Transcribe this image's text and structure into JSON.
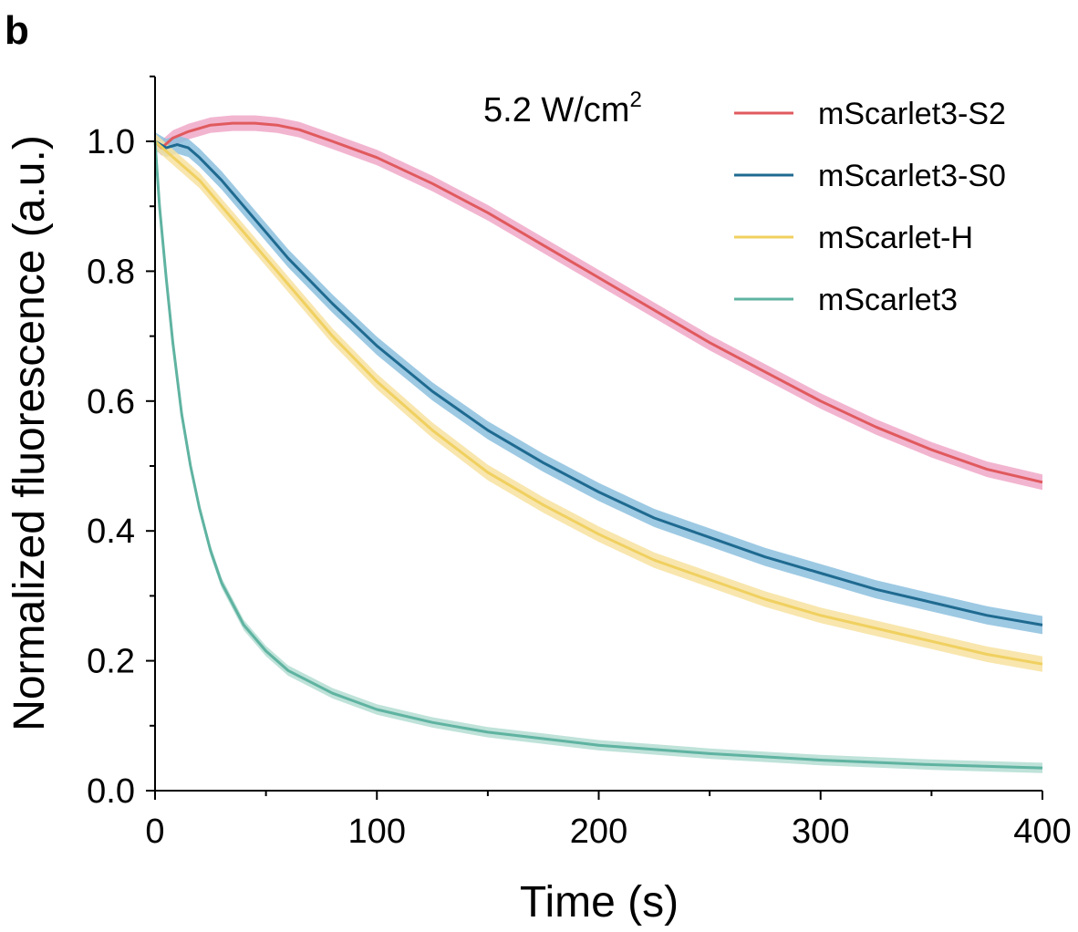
{
  "panel_label": "b",
  "chart_data": {
    "type": "line",
    "title": "",
    "annotation_main": "5.2 W/cm",
    "annotation_sup": "2",
    "xlabel": "Time (s)",
    "ylabel": "Normalized fluorescence (a.u.)",
    "xlim": [
      0,
      400
    ],
    "ylim": [
      0,
      1.1
    ],
    "xticks": [
      0,
      100,
      200,
      300,
      400
    ],
    "xtick_labels": [
      "0",
      "100",
      "200",
      "300",
      "400"
    ],
    "yticks": [
      0.0,
      0.2,
      0.4,
      0.6,
      0.8,
      1.0
    ],
    "ytick_labels": [
      "0.0",
      "0.2",
      "0.4",
      "0.6",
      "0.8",
      "1.0"
    ],
    "grid": false,
    "legend_position": "top-right",
    "series": [
      {
        "name": "mScarlet3-S2",
        "color": "#e05a5e",
        "band_color": "#f0a8c8",
        "x": [
          0,
          3,
          8,
          15,
          25,
          35,
          45,
          55,
          65,
          80,
          100,
          125,
          150,
          175,
          200,
          225,
          250,
          275,
          300,
          325,
          350,
          375,
          400
        ],
        "y": [
          1.0,
          0.99,
          1.005,
          1.015,
          1.025,
          1.028,
          1.028,
          1.025,
          1.018,
          1.0,
          0.975,
          0.935,
          0.89,
          0.84,
          0.79,
          0.74,
          0.69,
          0.645,
          0.6,
          0.56,
          0.525,
          0.495,
          0.475
        ],
        "band": 0.012
      },
      {
        "name": "mScarlet3-S0",
        "color": "#1f6a90",
        "band_color": "#8cc0de",
        "x": [
          0,
          5,
          10,
          15,
          20,
          30,
          40,
          50,
          60,
          80,
          100,
          125,
          150,
          175,
          200,
          225,
          250,
          275,
          300,
          325,
          350,
          375,
          400
        ],
        "y": [
          1.0,
          0.99,
          0.995,
          0.99,
          0.975,
          0.94,
          0.9,
          0.86,
          0.82,
          0.75,
          0.685,
          0.615,
          0.555,
          0.505,
          0.46,
          0.42,
          0.39,
          0.36,
          0.335,
          0.31,
          0.29,
          0.27,
          0.255
        ],
        "band": 0.014
      },
      {
        "name": "mScarlet-H",
        "color": "#f0d060",
        "band_color": "#f7e2a0",
        "x": [
          0,
          5,
          10,
          20,
          30,
          40,
          50,
          60,
          80,
          100,
          125,
          150,
          175,
          200,
          225,
          250,
          275,
          300,
          325,
          350,
          375,
          400
        ],
        "y": [
          1.0,
          0.985,
          0.97,
          0.94,
          0.9,
          0.86,
          0.82,
          0.78,
          0.7,
          0.63,
          0.555,
          0.49,
          0.44,
          0.395,
          0.355,
          0.325,
          0.295,
          0.27,
          0.25,
          0.23,
          0.21,
          0.195
        ],
        "band": 0.012
      },
      {
        "name": "mScarlet3",
        "color": "#5fb3a1",
        "band_color": "#b4ddd2",
        "x": [
          0,
          2,
          5,
          8,
          12,
          16,
          20,
          25,
          30,
          40,
          50,
          60,
          80,
          100,
          125,
          150,
          175,
          200,
          250,
          300,
          350,
          400
        ],
        "y": [
          1.0,
          0.9,
          0.79,
          0.69,
          0.58,
          0.5,
          0.435,
          0.37,
          0.32,
          0.255,
          0.215,
          0.185,
          0.15,
          0.125,
          0.105,
          0.09,
          0.08,
          0.07,
          0.057,
          0.047,
          0.04,
          0.035
        ],
        "band": 0.008
      }
    ]
  }
}
